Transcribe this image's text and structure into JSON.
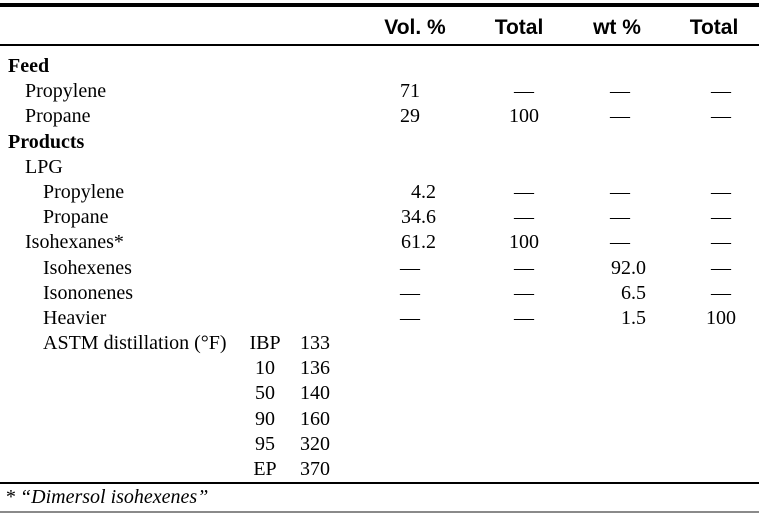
{
  "header": {
    "columns": [
      "Vol. %",
      "Total",
      "wt %",
      "Total"
    ]
  },
  "table": {
    "rows": [
      {
        "label": "Feed",
        "level": 0,
        "bold": true
      },
      {
        "label": "Propylene",
        "level": 1,
        "vol": "71",
        "total1": "—",
        "wt": "—",
        "total2": "—"
      },
      {
        "label": "Propane",
        "level": 1,
        "vol": "29",
        "total1": "100",
        "wt": "—",
        "total2": "—"
      },
      {
        "label": "Products",
        "level": 0,
        "bold": true
      },
      {
        "label": "LPG",
        "level": 1
      },
      {
        "label": "Propylene",
        "level": 2,
        "vol": "4.2",
        "total1": "—",
        "wt": "—",
        "total2": "—"
      },
      {
        "label": "Propane",
        "level": 2,
        "vol": "34.6",
        "total1": "—",
        "wt": "—",
        "total2": "—"
      },
      {
        "label": "Isohexanes*",
        "level": 1,
        "vol": "61.2",
        "total1": "100",
        "wt": "—",
        "total2": "—"
      },
      {
        "label": "Isohexenes",
        "level": 2,
        "vol": "—",
        "total1": "—",
        "wt": "92.0",
        "total2": "—"
      },
      {
        "label": "Isononenes",
        "level": 2,
        "vol": "—",
        "total1": "—",
        "wt": "6.5",
        "total2": "—"
      },
      {
        "label": "Heavier",
        "level": 2,
        "vol": "—",
        "total1": "—",
        "wt": "1.5",
        "total2": "100"
      },
      {
        "label": "ASTM distillation (°F)",
        "level": 2,
        "astm_key": "IBP",
        "astm_val": "133"
      },
      {
        "label": "",
        "level": 2,
        "astm_key": "10",
        "astm_val": "136"
      },
      {
        "label": "",
        "level": 2,
        "astm_key": "50",
        "astm_val": "140"
      },
      {
        "label": "",
        "level": 2,
        "astm_key": "90",
        "astm_val": "160"
      },
      {
        "label": "",
        "level": 2,
        "astm_key": "95",
        "astm_val": "320"
      },
      {
        "label": "",
        "level": 2,
        "astm_key": "EP",
        "astm_val": "370"
      }
    ]
  },
  "footnote": "* “Dimersol isohexenes”"
}
